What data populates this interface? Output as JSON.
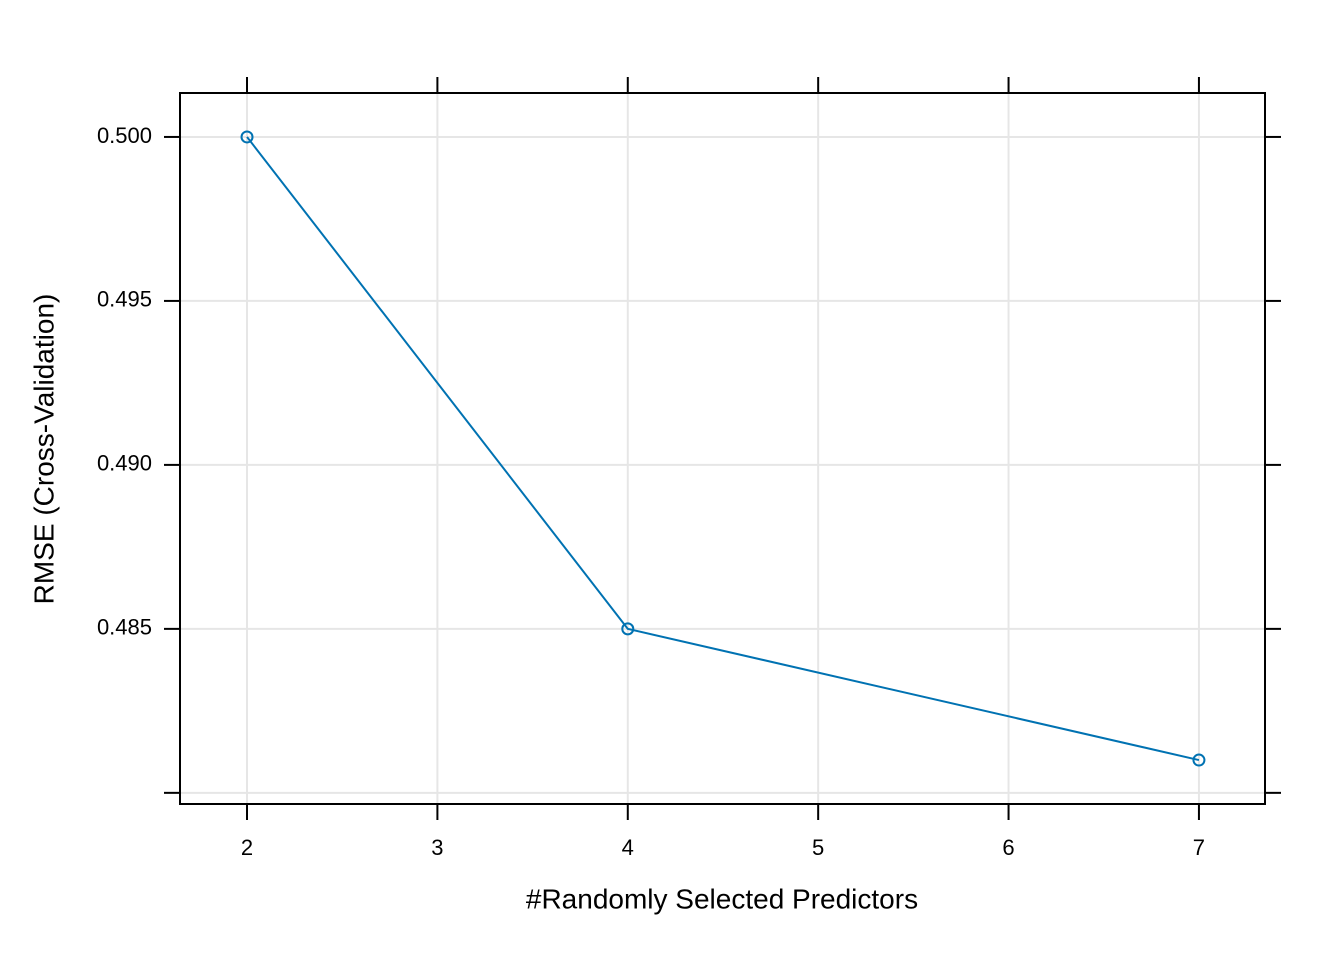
{
  "chart_data": {
    "type": "line",
    "xlabel": "#Randomly Selected Predictors",
    "ylabel": "RMSE (Cross-Validation)",
    "x": [
      2,
      4,
      7
    ],
    "values": [
      0.5,
      0.485,
      0.481
    ],
    "color": "#0072b2",
    "marker": "open-circle",
    "xlim": [
      1.648,
      7.347
    ],
    "ylim": [
      0.47966,
      0.50134
    ],
    "xticks": [
      2,
      3,
      4,
      5,
      6,
      7
    ],
    "yticks": [
      {
        "value": 0.48
      },
      {
        "value": 0.485,
        "label": "0.485"
      },
      {
        "value": 0.49,
        "label": "0.490"
      },
      {
        "value": 0.495,
        "label": "0.495"
      },
      {
        "value": 0.5,
        "label": "0.500"
      }
    ],
    "grid": true
  }
}
